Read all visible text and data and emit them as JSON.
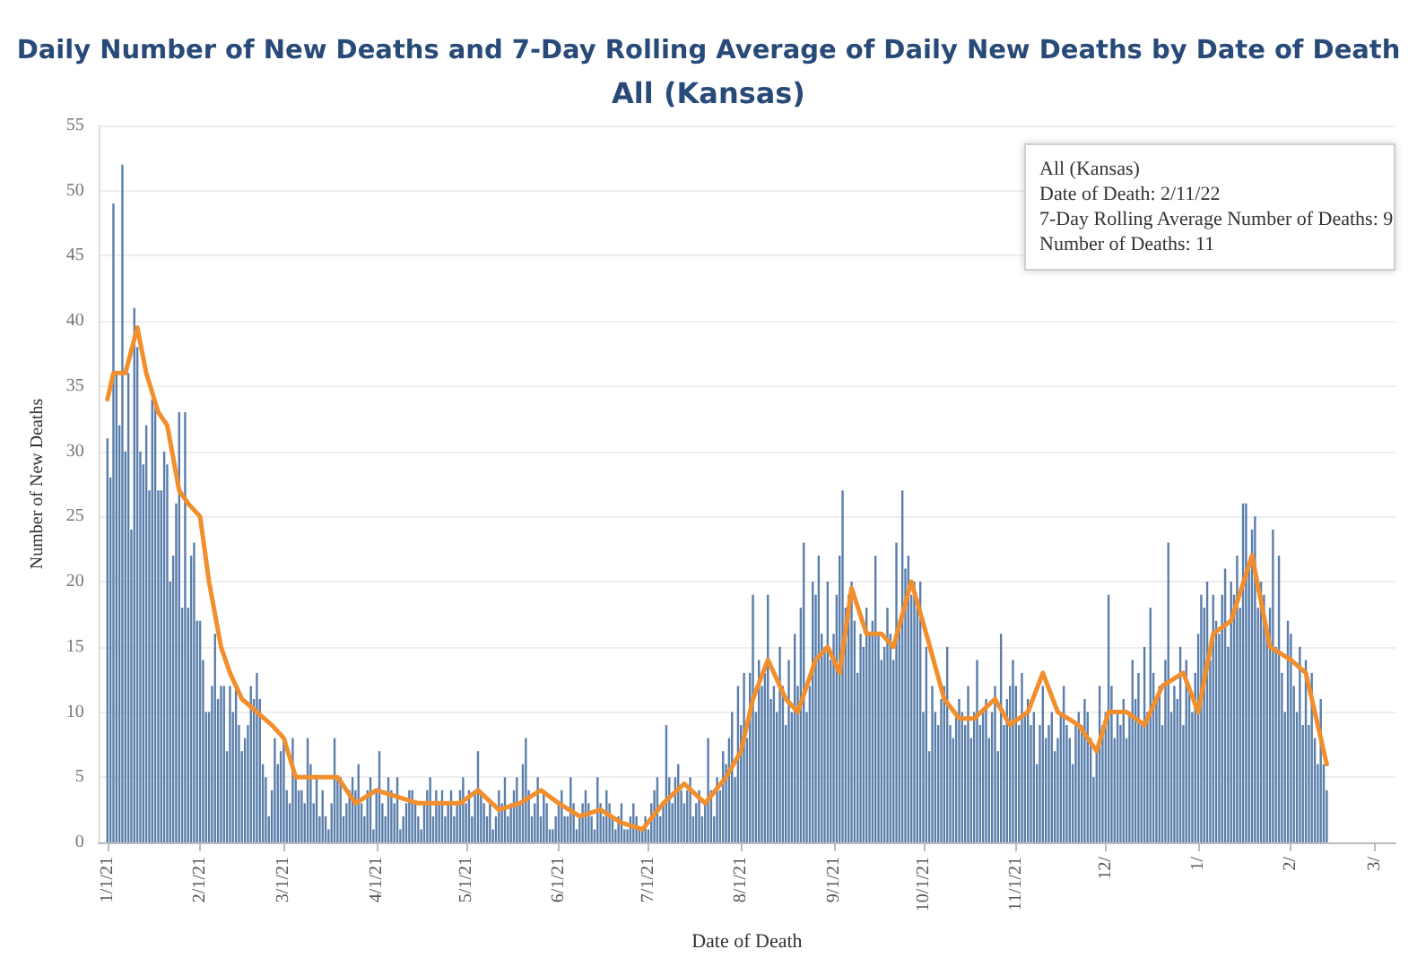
{
  "chart_data": {
    "type": "bar",
    "title": "Daily Number of New Deaths and 7-Day Rolling Average of Daily New Deaths by Date of Death",
    "subtitle": "All (Kansas)",
    "xlabel": "Date of Death",
    "ylabel": "Number of New Deaths",
    "xlim": [
      "2020-12-29",
      "2022-03-08"
    ],
    "xticks": [
      {
        "value": "2021-01-01",
        "label": "1/1/21"
      },
      {
        "value": "2021-02-01",
        "label": "2/1/21"
      },
      {
        "value": "2021-03-01",
        "label": "3/1/21"
      },
      {
        "value": "2021-04-01",
        "label": "4/1/21"
      },
      {
        "value": "2021-05-01",
        "label": "5/1/21"
      },
      {
        "value": "2021-06-01",
        "label": "6/1/21"
      },
      {
        "value": "2021-07-01",
        "label": "7/1/21"
      },
      {
        "value": "2021-08-01",
        "label": "8/1/21"
      },
      {
        "value": "2021-09-01",
        "label": "9/1/21"
      },
      {
        "value": "2021-10-01",
        "label": "10/1/21"
      },
      {
        "value": "2021-11-01",
        "label": "11/1/21"
      },
      {
        "value": "2021-12-01",
        "label": "12/"
      },
      {
        "value": "2022-01-01",
        "label": "1/"
      },
      {
        "value": "2022-02-01",
        "label": "2/"
      },
      {
        "value": "2022-03-01",
        "label": "3/"
      }
    ],
    "ylim": [
      0,
      55
    ],
    "yticks": [
      0,
      5,
      10,
      15,
      20,
      25,
      30,
      35,
      40,
      45,
      50,
      55
    ],
    "grid": "y",
    "annotations": [
      "All (Kansas)\nDate of Death: 2/11/22\n7-Day Rolling Average Number of Deaths: 9\nNumber of Deaths: 11"
    ],
    "series": [
      {
        "color": "#5a7eab",
        "x": [
          "2021-01-01",
          "2021-01-02",
          "2021-01-03",
          "2021-01-04",
          "2021-01-05",
          "2021-01-06",
          "2021-01-07",
          "2021-01-08",
          "2021-01-09",
          "2021-01-10",
          "2021-01-11",
          "2021-01-12",
          "2021-01-13",
          "2021-01-14",
          "2021-01-15",
          "2021-01-16",
          "2021-01-17",
          "2021-01-18",
          "2021-01-19",
          "2021-01-20",
          "2021-01-21",
          "2021-01-22",
          "2021-01-23",
          "2021-01-24",
          "2021-01-25",
          "2021-01-26",
          "2021-01-27",
          "2021-01-28",
          "2021-01-29",
          "2021-01-30",
          "2021-01-31",
          "2021-02-01",
          "2021-02-02",
          "2021-02-03",
          "2021-02-04",
          "2021-02-05",
          "2021-02-06",
          "2021-02-07",
          "2021-02-08",
          "2021-02-09",
          "2021-02-10",
          "2021-02-11",
          "2021-02-12",
          "2021-02-13",
          "2021-02-14",
          "2021-02-15",
          "2021-02-16",
          "2021-02-17",
          "2021-02-18",
          "2021-02-19",
          "2021-02-20",
          "2021-02-21",
          "2021-02-22",
          "2021-02-23",
          "2021-02-24",
          "2021-02-25",
          "2021-02-26",
          "2021-02-27",
          "2021-02-28",
          "2021-03-01",
          "2021-03-02",
          "2021-03-03",
          "2021-03-04",
          "2021-03-05",
          "2021-03-06",
          "2021-03-07",
          "2021-03-08",
          "2021-03-09",
          "2021-03-10",
          "2021-03-11",
          "2021-03-12",
          "2021-03-13",
          "2021-03-14",
          "2021-03-15",
          "2021-03-16",
          "2021-03-17",
          "2021-03-18",
          "2021-03-19",
          "2021-03-20",
          "2021-03-21",
          "2021-03-22",
          "2021-03-23",
          "2021-03-24",
          "2021-03-25",
          "2021-03-26",
          "2021-03-27",
          "2021-03-28",
          "2021-03-29",
          "2021-03-30",
          "2021-03-31",
          "2021-04-01",
          "2021-04-02",
          "2021-04-03",
          "2021-04-04",
          "2021-04-05",
          "2021-04-06",
          "2021-04-07",
          "2021-04-08",
          "2021-04-09",
          "2021-04-10",
          "2021-04-11",
          "2021-04-12",
          "2021-04-13",
          "2021-04-14",
          "2021-04-15",
          "2021-04-16",
          "2021-04-17",
          "2021-04-18",
          "2021-04-19",
          "2021-04-20",
          "2021-04-21",
          "2021-04-22",
          "2021-04-23",
          "2021-04-24",
          "2021-04-25",
          "2021-04-26",
          "2021-04-27",
          "2021-04-28",
          "2021-04-29",
          "2021-04-30",
          "2021-05-01",
          "2021-05-02",
          "2021-05-03",
          "2021-05-04",
          "2021-05-05",
          "2021-05-06",
          "2021-05-07",
          "2021-05-08",
          "2021-05-09",
          "2021-05-10",
          "2021-05-11",
          "2021-05-12",
          "2021-05-13",
          "2021-05-14",
          "2021-05-15",
          "2021-05-16",
          "2021-05-17",
          "2021-05-18",
          "2021-05-19",
          "2021-05-20",
          "2021-05-21",
          "2021-05-22",
          "2021-05-23",
          "2021-05-24",
          "2021-05-25",
          "2021-05-26",
          "2021-05-27",
          "2021-05-28",
          "2021-05-29",
          "2021-05-30",
          "2021-05-31",
          "2021-06-01",
          "2021-06-02",
          "2021-06-03",
          "2021-06-04",
          "2021-06-05",
          "2021-06-06",
          "2021-06-07",
          "2021-06-08",
          "2021-06-09",
          "2021-06-10",
          "2021-06-11",
          "2021-06-12",
          "2021-06-13",
          "2021-06-14",
          "2021-06-15",
          "2021-06-16",
          "2021-06-17",
          "2021-06-18",
          "2021-06-19",
          "2021-06-20",
          "2021-06-21",
          "2021-06-22",
          "2021-06-23",
          "2021-06-24",
          "2021-06-25",
          "2021-06-26",
          "2021-06-27",
          "2021-06-28",
          "2021-06-29",
          "2021-06-30",
          "2021-07-01",
          "2021-07-02",
          "2021-07-03",
          "2021-07-04",
          "2021-07-05",
          "2021-07-06",
          "2021-07-07",
          "2021-07-08",
          "2021-07-09",
          "2021-07-10",
          "2021-07-11",
          "2021-07-12",
          "2021-07-13",
          "2021-07-14",
          "2021-07-15",
          "2021-07-16",
          "2021-07-17",
          "2021-07-18",
          "2021-07-19",
          "2021-07-20",
          "2021-07-21",
          "2021-07-22",
          "2021-07-23",
          "2021-07-24",
          "2021-07-25",
          "2021-07-26",
          "2021-07-27",
          "2021-07-28",
          "2021-07-29",
          "2021-07-30",
          "2021-07-31",
          "2021-08-01",
          "2021-08-02",
          "2021-08-03",
          "2021-08-04",
          "2021-08-05",
          "2021-08-06",
          "2021-08-07",
          "2021-08-08",
          "2021-08-09",
          "2021-08-10",
          "2021-08-11",
          "2021-08-12",
          "2021-08-13",
          "2021-08-14",
          "2021-08-15",
          "2021-08-16",
          "2021-08-17",
          "2021-08-18",
          "2021-08-19",
          "2021-08-20",
          "2021-08-21",
          "2021-08-22",
          "2021-08-23",
          "2021-08-24",
          "2021-08-25",
          "2021-08-26",
          "2021-08-27",
          "2021-08-28",
          "2021-08-29",
          "2021-08-30",
          "2021-08-31",
          "2021-09-01",
          "2021-09-02",
          "2021-09-03",
          "2021-09-04",
          "2021-09-05",
          "2021-09-06",
          "2021-09-07",
          "2021-09-08",
          "2021-09-09",
          "2021-09-10",
          "2021-09-11",
          "2021-09-12",
          "2021-09-13",
          "2021-09-14",
          "2021-09-15",
          "2021-09-16",
          "2021-09-17",
          "2021-09-18",
          "2021-09-19",
          "2021-09-20",
          "2021-09-21",
          "2021-09-22",
          "2021-09-23",
          "2021-09-24",
          "2021-09-25",
          "2021-09-26",
          "2021-09-27",
          "2021-09-28",
          "2021-09-29",
          "2021-09-30",
          "2021-10-01",
          "2021-10-02",
          "2021-10-03",
          "2021-10-04",
          "2021-10-05",
          "2021-10-06",
          "2021-10-07",
          "2021-10-08",
          "2021-10-09",
          "2021-10-10",
          "2021-10-11",
          "2021-10-12",
          "2021-10-13",
          "2021-10-14",
          "2021-10-15",
          "2021-10-16",
          "2021-10-17",
          "2021-10-18",
          "2021-10-19",
          "2021-10-20",
          "2021-10-21",
          "2021-10-22",
          "2021-10-23",
          "2021-10-24",
          "2021-10-25",
          "2021-10-26",
          "2021-10-27",
          "2021-10-28",
          "2021-10-29",
          "2021-10-30",
          "2021-10-31",
          "2021-11-01",
          "2021-11-02",
          "2021-11-03",
          "2021-11-04",
          "2021-11-05",
          "2021-11-06",
          "2021-11-07",
          "2021-11-08",
          "2021-11-09",
          "2021-11-10",
          "2021-11-11",
          "2021-11-12",
          "2021-11-13",
          "2021-11-14",
          "2021-11-15",
          "2021-11-16",
          "2021-11-17",
          "2021-11-18",
          "2021-11-19",
          "2021-11-20",
          "2021-11-21",
          "2021-11-22",
          "2021-11-23",
          "2021-11-24",
          "2021-11-25",
          "2021-11-26",
          "2021-11-27",
          "2021-11-28",
          "2021-11-29",
          "2021-11-30",
          "2021-12-01",
          "2021-12-02",
          "2021-12-03",
          "2021-12-04",
          "2021-12-05",
          "2021-12-06",
          "2021-12-07",
          "2021-12-08",
          "2021-12-09",
          "2021-12-10",
          "2021-12-11",
          "2021-12-12",
          "2021-12-13",
          "2021-12-14",
          "2021-12-15",
          "2021-12-16",
          "2021-12-17",
          "2021-12-18",
          "2021-12-19",
          "2021-12-20",
          "2021-12-21",
          "2021-12-22",
          "2021-12-23",
          "2021-12-24",
          "2021-12-25",
          "2021-12-26",
          "2021-12-27",
          "2021-12-28",
          "2021-12-29",
          "2021-12-30",
          "2021-12-31",
          "2022-01-01",
          "2022-01-02",
          "2022-01-03",
          "2022-01-04",
          "2022-01-05",
          "2022-01-06",
          "2022-01-07",
          "2022-01-08",
          "2022-01-09",
          "2022-01-10",
          "2022-01-11",
          "2022-01-12",
          "2022-01-13",
          "2022-01-14",
          "2022-01-15",
          "2022-01-16",
          "2022-01-17",
          "2022-01-18",
          "2022-01-19",
          "2022-01-20",
          "2022-01-21",
          "2022-01-22",
          "2022-01-23",
          "2022-01-24",
          "2022-01-25",
          "2022-01-26",
          "2022-01-27",
          "2022-01-28",
          "2022-01-29",
          "2022-01-30",
          "2022-01-31",
          "2022-02-01",
          "2022-02-02",
          "2022-02-03",
          "2022-02-04",
          "2022-02-05",
          "2022-02-06",
          "2022-02-07",
          "2022-02-08",
          "2022-02-09",
          "2022-02-10",
          "2022-02-11",
          "2022-02-12",
          "2022-02-13"
        ],
        "values": [
          31,
          28,
          49,
          36,
          32,
          52,
          30,
          36,
          24,
          41,
          38,
          30,
          29,
          32,
          27,
          34,
          34,
          27,
          27,
          30,
          29,
          20,
          22,
          26,
          33,
          18,
          33,
          18,
          22,
          23,
          17,
          17,
          14,
          10,
          10,
          12,
          16,
          11,
          12,
          12,
          7,
          12,
          10,
          12,
          9,
          7,
          8,
          9,
          12,
          11,
          13,
          11,
          6,
          5,
          2,
          4,
          8,
          6,
          7,
          8,
          4,
          3,
          8,
          5,
          4,
          4,
          3,
          8,
          6,
          3,
          5,
          2,
          4,
          2,
          1,
          3,
          8,
          5,
          5,
          2,
          3,
          4,
          5,
          4,
          6,
          3,
          2,
          4,
          5,
          1,
          4,
          7,
          3,
          2,
          5,
          4,
          3,
          5,
          1,
          2,
          3,
          4,
          4,
          3,
          2,
          1,
          3,
          4,
          5,
          2,
          4,
          3,
          4,
          2,
          3,
          4,
          2,
          3,
          4,
          5,
          3,
          4,
          2,
          4,
          7,
          4,
          3,
          2,
          3,
          1,
          2,
          4,
          3,
          5,
          2,
          3,
          4,
          5,
          3,
          6,
          8,
          4,
          2,
          3,
          5,
          2,
          4,
          3,
          1,
          1,
          2,
          3,
          4,
          2,
          2,
          5,
          3,
          1,
          2,
          3,
          4,
          3,
          2,
          1,
          5,
          3,
          2,
          4,
          3,
          2,
          1,
          2,
          3,
          1,
          1,
          2,
          3,
          2,
          1,
          1,
          2,
          1,
          3,
          4,
          5,
          2,
          3,
          9,
          5,
          3,
          5,
          6,
          4,
          3,
          4,
          5,
          2,
          3,
          4,
          2,
          3,
          8,
          4,
          2,
          5,
          4,
          7,
          6,
          8,
          10,
          5,
          12,
          9,
          13,
          8,
          13,
          19,
          10,
          14,
          12,
          13,
          19,
          11,
          12,
          10,
          15,
          12,
          9,
          14,
          10,
          16,
          12,
          18,
          23,
          10,
          12,
          20,
          19,
          22,
          16,
          15,
          20,
          14,
          16,
          19,
          22,
          27,
          18,
          19,
          20,
          17,
          13,
          16,
          15,
          18,
          16,
          17,
          22,
          16,
          14,
          15,
          18,
          16,
          14,
          23,
          17,
          27,
          21,
          22,
          19,
          20,
          18,
          20,
          10,
          15,
          7,
          12,
          10,
          9,
          11,
          12,
          15,
          9,
          8,
          10,
          11,
          10,
          9,
          12,
          8,
          10,
          14,
          9,
          10,
          11,
          8,
          10,
          12,
          7,
          16,
          9,
          11,
          12,
          14,
          12,
          9,
          13,
          10,
          11,
          9,
          10,
          6,
          9,
          12,
          8,
          9,
          10,
          7,
          8,
          10,
          12,
          9,
          8,
          6,
          9,
          10,
          9,
          11,
          10,
          8,
          5,
          7,
          12,
          9,
          10,
          19,
          12,
          8,
          10,
          9,
          11,
          8,
          10,
          14,
          11,
          13,
          9,
          15,
          10,
          18,
          13,
          11,
          12,
          9,
          14,
          23,
          10,
          12,
          11,
          15,
          9,
          14,
          12,
          10,
          13,
          16,
          19,
          18,
          20,
          14,
          19,
          17,
          16,
          19,
          21,
          15,
          20,
          19,
          22,
          18,
          26,
          26,
          21,
          24,
          25,
          18,
          20,
          19,
          16,
          18,
          24,
          15,
          22,
          13,
          10,
          17,
          16,
          12,
          10,
          15,
          9,
          14,
          9,
          13,
          8,
          6,
          11,
          6,
          4
        ]
      },
      {
        "type": "line",
        "color": "#f28e2b",
        "marker": "none",
        "line_style": "solid",
        "x": [
          "2021-01-01",
          "2021-01-03",
          "2021-01-07",
          "2021-01-11",
          "2021-01-14",
          "2021-01-18",
          "2021-01-21",
          "2021-01-25",
          "2021-01-28",
          "2021-02-01",
          "2021-02-04",
          "2021-02-08",
          "2021-02-11",
          "2021-02-15",
          "2021-02-20",
          "2021-02-25",
          "2021-03-01",
          "2021-03-05",
          "2021-03-12",
          "2021-03-19",
          "2021-03-25",
          "2021-04-01",
          "2021-04-08",
          "2021-04-15",
          "2021-04-22",
          "2021-04-29",
          "2021-05-05",
          "2021-05-12",
          "2021-05-19",
          "2021-05-26",
          "2021-06-01",
          "2021-06-08",
          "2021-06-15",
          "2021-06-22",
          "2021-06-29",
          "2021-07-06",
          "2021-07-13",
          "2021-07-20",
          "2021-07-27",
          "2021-08-01",
          "2021-08-05",
          "2021-08-10",
          "2021-08-16",
          "2021-08-20",
          "2021-08-26",
          "2021-08-30",
          "2021-09-03",
          "2021-09-07",
          "2021-09-12",
          "2021-09-17",
          "2021-09-21",
          "2021-09-27",
          "2021-10-02",
          "2021-10-08",
          "2021-10-13",
          "2021-10-18",
          "2021-10-25",
          "2021-10-30",
          "2021-11-05",
          "2021-11-10",
          "2021-11-15",
          "2021-11-22",
          "2021-11-28",
          "2021-12-02",
          "2021-12-08",
          "2021-12-14",
          "2021-12-20",
          "2021-12-27",
          "2022-01-01",
          "2022-01-06",
          "2022-01-12",
          "2022-01-19",
          "2022-01-25",
          "2022-02-01",
          "2022-02-06",
          "2022-02-13"
        ],
        "values": [
          34,
          36,
          36,
          39.5,
          36,
          33,
          32,
          27,
          26,
          25,
          20,
          15,
          13,
          11,
          10,
          9,
          8,
          5,
          5,
          5,
          3,
          4,
          3.5,
          3,
          3,
          3,
          4,
          2.5,
          3,
          4,
          3,
          2,
          2.5,
          1.5,
          1,
          3,
          4.5,
          3,
          5,
          7,
          11,
          14,
          11,
          10,
          14,
          15,
          13,
          19.5,
          16,
          16,
          15,
          20,
          16,
          11,
          9.5,
          9.5,
          11,
          9,
          10,
          13,
          10,
          9,
          7,
          10,
          10,
          9,
          12,
          13,
          10,
          16,
          17,
          22,
          15,
          14,
          13,
          6
        ]
      }
    ]
  }
}
